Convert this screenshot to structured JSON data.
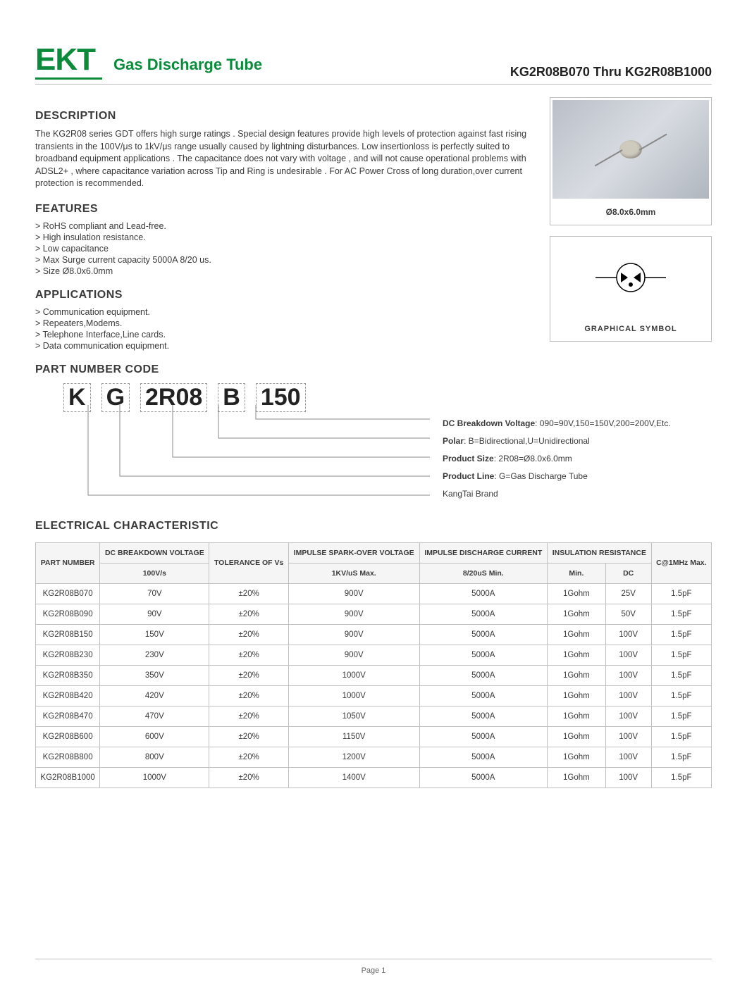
{
  "brand": "EKT",
  "product_name": "Gas Discharge Tube",
  "part_range": "KG2R08B070 Thru KG2R08B1000",
  "description_heading": "DESCRIPTION",
  "description": "The KG2R08 series GDT offers high surge ratings . Special design features provide high levels of protection against fast rising transients in the 100V/μs to 1kV/μs range usually caused by lightning disturbances. Low insertionloss is perfectly  suited  to broadband equipment applications . The capacitance does not vary with voltage , and will not cause operational problems with ADSL2+ , where capacitance variation across Tip and Ring is undesirable . For AC Power Cross of long duration,over current protection is recommended.",
  "features_heading": "FEATURES",
  "features": [
    "RoHS compliant and Lead-free.",
    "High insulation resistance.",
    "Low capacitance",
    "Max Surge current capacity 5000A 8/20 us.",
    "Size Ø8.0x6.0mm"
  ],
  "applications_heading": "APPLICATIONS",
  "applications": [
    "Communication equipment.",
    "Repeaters,Modems.",
    "Telephone Interface,Line cards.",
    "Data communication equipment."
  ],
  "partcode_heading": "PART  NUMBER  CODE",
  "partcode": [
    "K",
    "G",
    "2R08",
    "B",
    "150"
  ],
  "partcode_desc": [
    {
      "b": "DC Breakdown Voltage",
      "t": ": 090=90V,150=150V,200=200V,Etc."
    },
    {
      "b": "Polar",
      "t": ": B=Bidirectional,U=Unidirectional"
    },
    {
      "b": "Product Size",
      "t": ": 2R08=Ø8.0x6.0mm"
    },
    {
      "b": "Product Line",
      "t": ": G=Gas Discharge Tube"
    },
    {
      "b": "",
      "t": "KangTai Brand"
    }
  ],
  "dim_label": "Ø8.0x6.0mm",
  "symbol_label": "GRAPHICAL  SYMBOL",
  "elec_heading": "ELECTRICAL CHARACTERISTIC",
  "table": {
    "headers1": [
      "PART NUMBER",
      "DC BREAKDOWN VOLTAGE",
      "TOLERANCE OF Vs",
      "IMPULSE SPARK-OVER VOLTAGE",
      "IMPULSE DISCHARGE CURRENT",
      "INSULATION RESISTANCE",
      "C@1MHz Max."
    ],
    "headers2": [
      "",
      "100V/s",
      "",
      "1KV/uS Max.",
      "8/20uS Min.",
      "Min.",
      "DC",
      ""
    ],
    "rows": [
      [
        "KG2R08B070",
        "70V",
        "±20%",
        "900V",
        "5000A",
        "1Gohm",
        "25V",
        "1.5pF"
      ],
      [
        "KG2R08B090",
        "90V",
        "±20%",
        "900V",
        "5000A",
        "1Gohm",
        "50V",
        "1.5pF"
      ],
      [
        "KG2R08B150",
        "150V",
        "±20%",
        "900V",
        "5000A",
        "1Gohm",
        "100V",
        "1.5pF"
      ],
      [
        "KG2R08B230",
        "230V",
        "±20%",
        "900V",
        "5000A",
        "1Gohm",
        "100V",
        "1.5pF"
      ],
      [
        "KG2R08B350",
        "350V",
        "±20%",
        "1000V",
        "5000A",
        "1Gohm",
        "100V",
        "1.5pF"
      ],
      [
        "KG2R08B420",
        "420V",
        "±20%",
        "1000V",
        "5000A",
        "1Gohm",
        "100V",
        "1.5pF"
      ],
      [
        "KG2R08B470",
        "470V",
        "±20%",
        "1050V",
        "5000A",
        "1Gohm",
        "100V",
        "1.5pF"
      ],
      [
        "KG2R08B600",
        "600V",
        "±20%",
        "1150V",
        "5000A",
        "1Gohm",
        "100V",
        "1.5pF"
      ],
      [
        "KG2R08B800",
        "800V",
        "±20%",
        "1200V",
        "5000A",
        "1Gohm",
        "100V",
        "1.5pF"
      ],
      [
        "KG2R08B1000",
        "1000V",
        "±20%",
        "1400V",
        "5000A",
        "1Gohm",
        "100V",
        "1.5pF"
      ]
    ]
  },
  "page_footer": "Page 1",
  "colors": {
    "brand_green": "#0a8a3a",
    "border": "#c0c0c0",
    "text": "#3a3a3a"
  }
}
